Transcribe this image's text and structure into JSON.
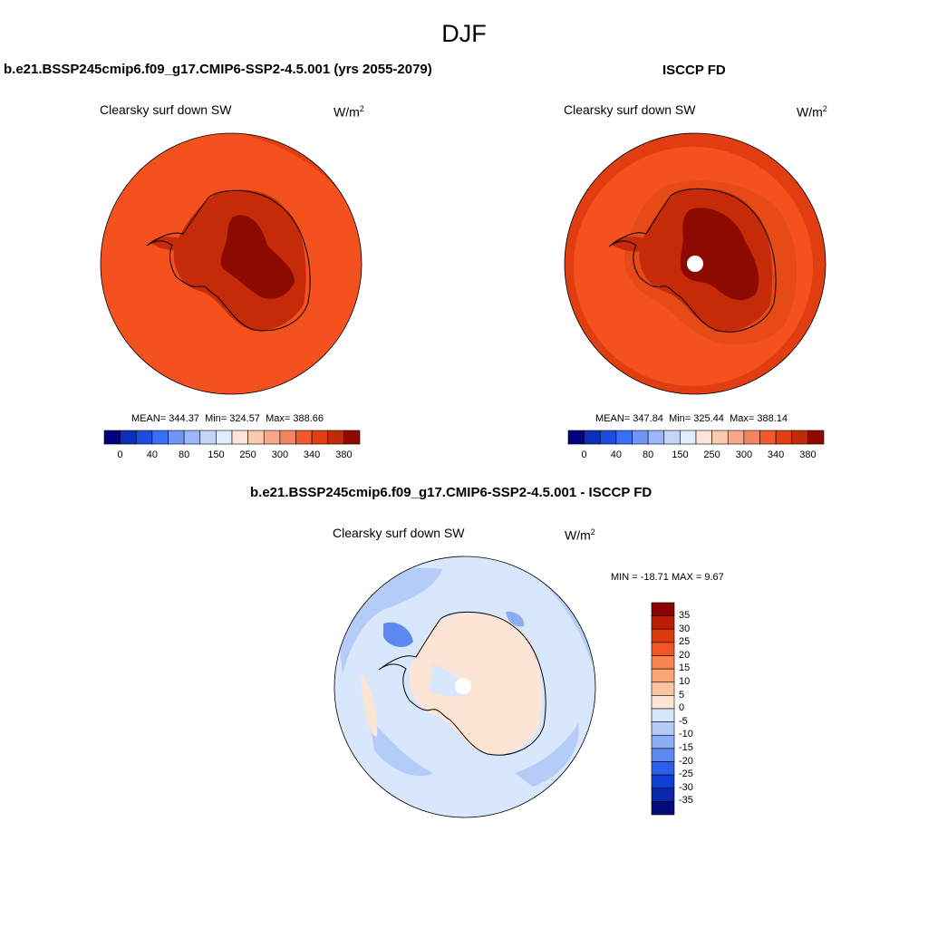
{
  "season": "DJF",
  "colors": {
    "seq_palette": [
      "#000080",
      "#0a2fb8",
      "#1a4de0",
      "#3a6ef5",
      "#6f95f5",
      "#9cb7f7",
      "#c3d5fa",
      "#e1ecfc",
      "#fde6d8",
      "#fbcbb1",
      "#f8a98a",
      "#f4845f",
      "#f05a2e",
      "#e03f12",
      "#c02b08",
      "#8c0a00"
    ],
    "div_palette": [
      "#8b0000",
      "#b91c00",
      "#dc3a0a",
      "#f35424",
      "#f7854f",
      "#fba678",
      "#fdc4a2",
      "#fde5d6",
      "#d7e6fb",
      "#b4cbf8",
      "#8aadf5",
      "#5e88f2",
      "#2d5fe8",
      "#0c3fd4",
      "#0a27a8",
      "#050a7a"
    ]
  },
  "chart_data": [
    {
      "type": "heatmap",
      "projection": "south-polar-stereographic",
      "title": "b.e21.BSSP245cmip6.f09_g17.CMIP6-SSP2-4.5.001 (yrs 2055-2079)",
      "variable": "Clearsky surf down SW",
      "units": "W/m",
      "units_exp": "2",
      "stats": {
        "mean_label": "MEAN=",
        "mean": "344.37",
        "min_label": "Min=",
        "min": "324.57",
        "max_label": "Max=",
        "max": "388.66"
      },
      "colorbar_ticks": [
        "0",
        "40",
        "80",
        "150",
        "250",
        "300",
        "340",
        "380"
      ],
      "colorbar_orientation": "horizontal"
    },
    {
      "type": "heatmap",
      "projection": "south-polar-stereographic",
      "title": "ISCCP FD",
      "variable": "Clearsky surf down SW",
      "units": "W/m",
      "units_exp": "2",
      "stats": {
        "mean_label": "MEAN=",
        "mean": "347.84",
        "min_label": "Min=",
        "min": "325.44",
        "max_label": "Max=",
        "max": "388.14"
      },
      "colorbar_ticks": [
        "0",
        "40",
        "80",
        "150",
        "250",
        "300",
        "340",
        "380"
      ],
      "colorbar_orientation": "horizontal"
    },
    {
      "type": "heatmap",
      "projection": "south-polar-stereographic",
      "title": "b.e21.BSSP245cmip6.f09_g17.CMIP6-SSP2-4.5.001 - ISCCP FD",
      "variable": "Clearsky surf down SW",
      "units": "W/m",
      "units_exp": "2",
      "stats_text": "MIN = -18.71 MAX =   9.67",
      "colorbar_ticks": [
        "35",
        "30",
        "25",
        "20",
        "15",
        "10",
        "5",
        "0",
        "-5",
        "-10",
        "-15",
        "-20",
        "-25",
        "-30",
        "-35"
      ],
      "colorbar_orientation": "vertical"
    }
  ]
}
